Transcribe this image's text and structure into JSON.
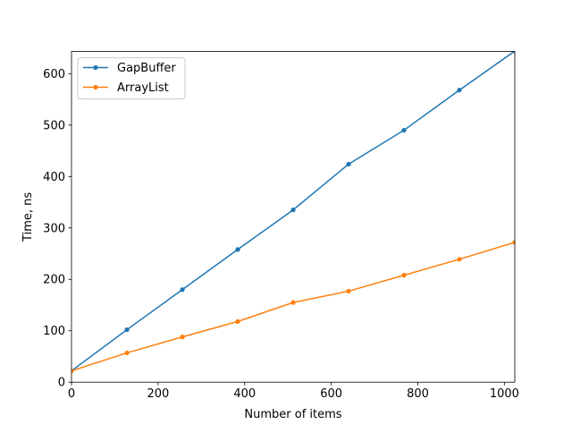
{
  "chart_data": {
    "type": "line",
    "title": "",
    "xlabel": "Number of items",
    "ylabel": "Time, ns",
    "xlim": [
      0,
      1024
    ],
    "ylim": [
      0,
      643
    ],
    "xticks": [
      0,
      200,
      400,
      600,
      800,
      1000
    ],
    "yticks": [
      0,
      100,
      200,
      300,
      400,
      500,
      600
    ],
    "grid": false,
    "legend_position": "upper left",
    "x": [
      0,
      128,
      256,
      384,
      512,
      640,
      768,
      896,
      1024
    ],
    "series": [
      {
        "name": "GapBuffer",
        "color": "#1f77b4",
        "marker": "dot",
        "values": [
          22,
          102,
          180,
          258,
          335,
          424,
          490,
          568,
          644
        ]
      },
      {
        "name": "ArrayList",
        "color": "#ff7f0e",
        "marker": "dot",
        "values": [
          22,
          57,
          88,
          118,
          155,
          177,
          208,
          239,
          272
        ]
      }
    ]
  }
}
